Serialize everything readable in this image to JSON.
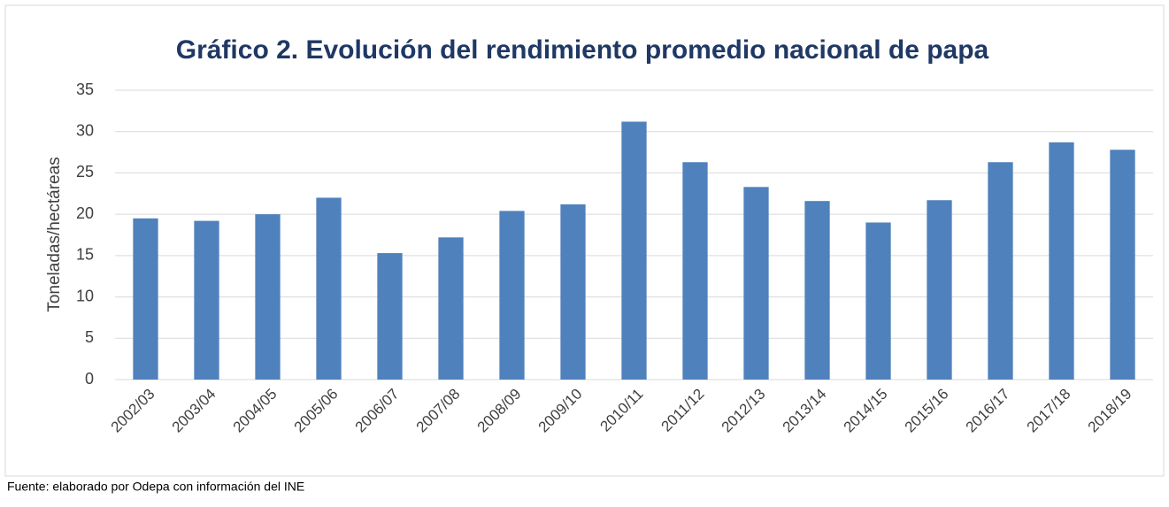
{
  "chart_data": {
    "type": "bar",
    "title": "Gráfico 2. Evolución del rendimiento promedio nacional de papa",
    "y_label": "Toneladas/hectáreas",
    "source": "Fuente: elaborado por Odepa con información del INE",
    "categories": [
      "2002/03",
      "2003/04",
      "2004/05",
      "2005/06",
      "2006/07",
      "2007/08",
      "2008/09",
      "2009/10",
      "2010/11",
      "2011/12",
      "2012/13",
      "2013/14",
      "2014/15",
      "2015/16",
      "2016/17",
      "2017/18",
      "2018/19"
    ],
    "values": [
      19.5,
      19.2,
      20.0,
      22.0,
      15.3,
      17.2,
      20.4,
      21.2,
      31.2,
      26.3,
      23.3,
      21.6,
      19.0,
      21.7,
      26.3,
      28.7,
      27.8
    ],
    "color": "#4f81bd",
    "ylim": [
      0,
      35
    ],
    "yticks": [
      0,
      5,
      10,
      15,
      20,
      25,
      30,
      35
    ],
    "grid": true
  }
}
